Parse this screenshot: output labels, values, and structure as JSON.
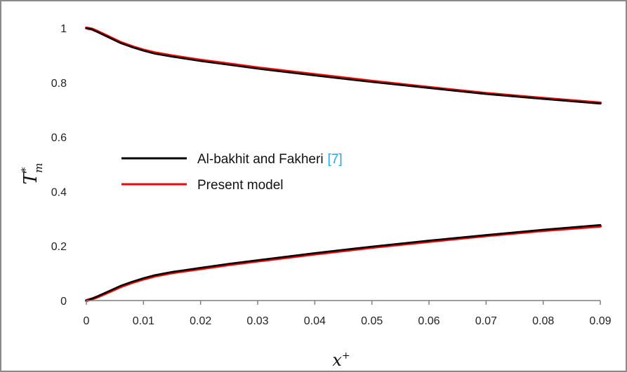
{
  "chart_data": {
    "type": "line",
    "xlabel": "x",
    "xlabel_sup": "+",
    "ylabel": "T",
    "ylabel_sup": "*",
    "ylabel_sub": "m",
    "xlim": [
      0,
      0.09
    ],
    "ylim": [
      0,
      1
    ],
    "xticks": [
      "0",
      "0.01",
      "0.02",
      "0.03",
      "0.04",
      "0.05",
      "0.06",
      "0.07",
      "0.08",
      "0.09"
    ],
    "yticks": [
      "0",
      "0.2",
      "0.4",
      "0.6",
      "0.8",
      "1"
    ],
    "grid": false,
    "legend_position": "center-left",
    "legend": [
      {
        "label": "Al-bakhit and Fakheri",
        "ref": "[7]",
        "color": "#000000"
      },
      {
        "label": "Present model",
        "ref": "",
        "color": "#ff0000"
      }
    ],
    "ref_color": "#2ba3dd",
    "series": [
      {
        "name": "Al-bakhit and Fakheri [7]",
        "color": "#000000",
        "curves": [
          {
            "x": [
              0,
              0.001,
              0.002,
              0.004,
              0.006,
              0.008,
              0.01,
              0.012,
              0.015,
              0.02,
              0.025,
              0.03,
              0.04,
              0.05,
              0.06,
              0.07,
              0.08,
              0.09
            ],
            "y": [
              1.0,
              0.995,
              0.985,
              0.965,
              0.945,
              0.93,
              0.917,
              0.906,
              0.895,
              0.879,
              0.865,
              0.851,
              0.826,
              0.802,
              0.78,
              0.758,
              0.74,
              0.723
            ]
          },
          {
            "x": [
              0,
              0.001,
              0.002,
              0.004,
              0.006,
              0.008,
              0.01,
              0.012,
              0.015,
              0.02,
              0.025,
              0.03,
              0.04,
              0.05,
              0.06,
              0.07,
              0.08,
              0.09
            ],
            "y": [
              0.0,
              0.007,
              0.016,
              0.035,
              0.054,
              0.069,
              0.082,
              0.093,
              0.105,
              0.12,
              0.135,
              0.148,
              0.174,
              0.198,
              0.22,
              0.24,
              0.26,
              0.277
            ]
          }
        ]
      },
      {
        "name": "Present model",
        "color": "#ff0000",
        "curves": [
          {
            "x": [
              0,
              0.001,
              0.002,
              0.004,
              0.006,
              0.008,
              0.01,
              0.012,
              0.015,
              0.02,
              0.025,
              0.03,
              0.04,
              0.05,
              0.06,
              0.07,
              0.08,
              0.09
            ],
            "y": [
              1.0,
              0.996,
              0.987,
              0.967,
              0.947,
              0.932,
              0.919,
              0.909,
              0.898,
              0.882,
              0.868,
              0.854,
              0.829,
              0.805,
              0.782,
              0.76,
              0.742,
              0.725
            ]
          },
          {
            "x": [
              0,
              0.001,
              0.002,
              0.004,
              0.006,
              0.008,
              0.01,
              0.012,
              0.015,
              0.02,
              0.025,
              0.03,
              0.04,
              0.05,
              0.06,
              0.07,
              0.08,
              0.09
            ],
            "y": [
              0.0,
              0.006,
              0.014,
              0.032,
              0.051,
              0.066,
              0.079,
              0.09,
              0.102,
              0.117,
              0.132,
              0.145,
              0.171,
              0.195,
              0.217,
              0.238,
              0.257,
              0.273
            ]
          }
        ]
      }
    ]
  }
}
